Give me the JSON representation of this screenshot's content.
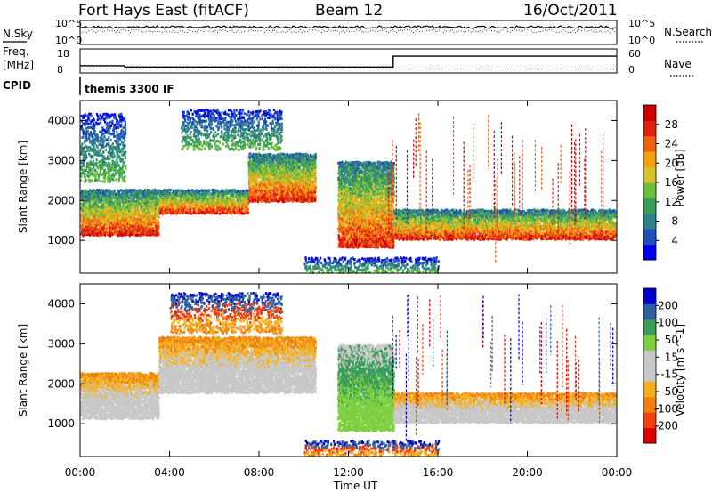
{
  "chart_data": [
    {
      "type": "line",
      "header": {
        "station": "Fort Hays East (fitACF)",
        "beam": "Beam 12",
        "date": "16/Oct/2011"
      },
      "panels": {
        "nsky": {
          "left_label": "N.Sky",
          "right_label": "N.Search",
          "left_ticks": [
            "10^5",
            "10^0"
          ],
          "right_ticks": [
            "10^5",
            "10^0"
          ]
        },
        "freq": {
          "left_label_1": "Freq.",
          "left_label_2": "[MHz]",
          "right_label": "Nave",
          "left_ticks": [
            "18",
            "8"
          ],
          "right_ticks": [
            "60",
            "0"
          ],
          "freq_series": [
            {
              "x": 0.0,
              "y": 11
            },
            {
              "x": 2.0,
              "y": 11
            },
            {
              "x": 2.0,
              "y": 10.5
            },
            {
              "x": 14.0,
              "y": 10.5
            },
            {
              "x": 14.0,
              "y": 15
            },
            {
              "x": 24.0,
              "y": 15
            }
          ],
          "freq_ylim": [
            8,
            18
          ],
          "nave_level": 10,
          "nave_ylim": [
            0,
            60
          ]
        },
        "cpid": {
          "label": "CPID",
          "program": "themis 3300 IF"
        }
      },
      "x_axis": {
        "label": "Time UT",
        "ticks": [
          "00:00",
          "04:00",
          "08:00",
          "12:00",
          "16:00",
          "20:00",
          "00:00"
        ],
        "xlim": [
          0,
          24
        ]
      }
    },
    {
      "type": "heatmap",
      "name": "power",
      "ylabel": "Slant Range [km]",
      "yticks": [
        "1000",
        "2000",
        "3000",
        "4000"
      ],
      "ylim": [
        180,
        4500
      ],
      "colorbar": {
        "label": "Power [dB]",
        "ticks": [
          "28",
          "24",
          "20",
          "16",
          "12",
          "8",
          "4"
        ],
        "range": [
          0,
          30
        ],
        "colors": [
          "#0000ee",
          "#1f50b8",
          "#2f7f8a",
          "#3a9d5a",
          "#6cbf3c",
          "#d8c22a",
          "#f3a010",
          "#f06010",
          "#e02010",
          "#cc0000"
        ]
      },
      "echo_bands": [
        {
          "x": [
            0.0,
            3.5
          ],
          "y": [
            1150,
            2300
          ],
          "level": "strong"
        },
        {
          "x": [
            3.5,
            7.5
          ],
          "y": [
            1700,
            2300
          ],
          "level": "strong"
        },
        {
          "x": [
            7.5,
            10.5
          ],
          "y": [
            2000,
            3200
          ],
          "level": "strong"
        },
        {
          "x": [
            11.5,
            14.0
          ],
          "y": [
            850,
            3000
          ],
          "level": "strong"
        },
        {
          "x": [
            14.0,
            24.0
          ],
          "y": [
            1050,
            1800
          ],
          "level": "strong"
        },
        {
          "x": [
            0.0,
            2.0
          ],
          "y": [
            2500,
            4200
          ],
          "level": "weak"
        },
        {
          "x": [
            4.5,
            9.0
          ],
          "y": [
            3300,
            4300
          ],
          "level": "weak"
        },
        {
          "x": [
            10.0,
            16.0
          ],
          "y": [
            200,
            600
          ],
          "level": "weak"
        }
      ]
    },
    {
      "type": "heatmap",
      "name": "velocity",
      "ylabel": "Slant Range [km]",
      "yticks": [
        "1000",
        "2000",
        "3000",
        "4000"
      ],
      "ylim": [
        180,
        4500
      ],
      "colorbar": {
        "label": "Velocity [m s^-1]",
        "ticks": [
          "200",
          "100",
          "50",
          "15",
          "-15",
          "-50",
          "-100",
          "-200"
        ],
        "range": [
          -250,
          250
        ],
        "colors": [
          "#dd0000",
          "#f04010",
          "#f08010",
          "#f5b020",
          "#c8c8c8",
          "#c8c8c8",
          "#7fcf40",
          "#3a9d5a",
          "#2f5fa0",
          "#0000cc"
        ]
      },
      "echo_bands": [
        {
          "x": [
            0.0,
            3.5
          ],
          "y": [
            1150,
            2300
          ],
          "level": "ground"
        },
        {
          "x": [
            3.5,
            10.5
          ],
          "y": [
            1800,
            3200
          ],
          "level": "ground"
        },
        {
          "x": [
            11.5,
            14.0
          ],
          "y": [
            850,
            3000
          ],
          "level": "positive"
        },
        {
          "x": [
            14.0,
            24.0
          ],
          "y": [
            1050,
            1800
          ],
          "level": "ground"
        },
        {
          "x": [
            4.0,
            9.0
          ],
          "y": [
            3300,
            4300
          ],
          "level": "negative"
        },
        {
          "x": [
            10.0,
            16.0
          ],
          "y": [
            200,
            600
          ],
          "level": "negative"
        }
      ]
    }
  ]
}
